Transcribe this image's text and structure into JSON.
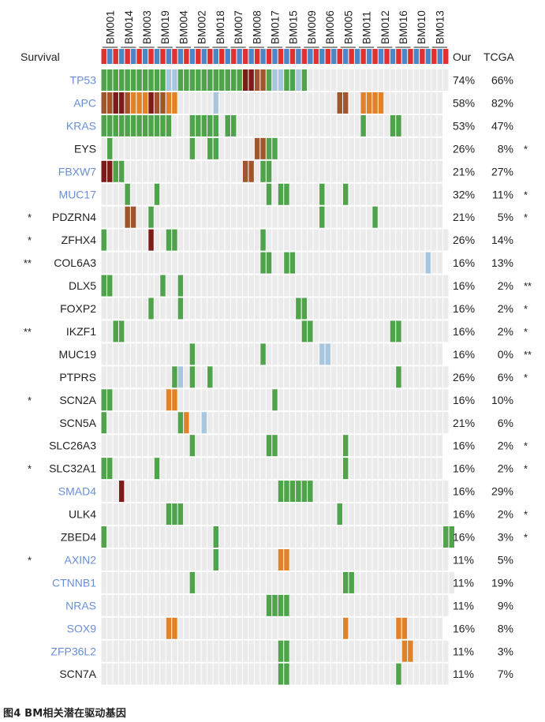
{
  "caption": "图4 BM相关潜在驱动基因",
  "chart_data": {
    "type": "heatmap",
    "title": "",
    "survival_label": "Survival",
    "col_header_our": "Our",
    "col_header_tcga": "TCGA",
    "samples": [
      "BM001",
      "BM014",
      "BM003",
      "BM019",
      "BM004",
      "BM002",
      "BM018",
      "BM007",
      "BM008",
      "BM017",
      "BM015",
      "BM009",
      "BM006",
      "BM005",
      "BM011",
      "BM012",
      "BM016",
      "BM010",
      "BM013"
    ],
    "survival_pattern": [
      "short",
      "long"
    ],
    "colors": {
      "short_survival": "#e03030",
      "long_survival": "#4a86c8",
      "A": "#4fa34a",
      "B": "#a9c6df",
      "C": "#7e1a18",
      "D": "#a0552c",
      "E": "#e0822a",
      "empty": "#ebebeb",
      "gene_blue": "#6a8ed6",
      "gene_black": "#222222"
    },
    "genes": [
      {
        "name": "TP53",
        "color": "blue",
        "left_mark": "",
        "our": "74%",
        "tcga": "66%",
        "right_mark": "",
        "cells": "AAAAAAAAAAABBAAAAAAAAAAACCDDABBAABA........................"
      },
      {
        "name": "APC",
        "color": "blue",
        "left_mark": "",
        "our": "58%",
        "tcga": "82%",
        "right_mark": "",
        "cells": "DDCCDEEECDDEE......B....................DD..EEEE.........."
      },
      {
        "name": "KRAS",
        "color": "blue",
        "left_mark": "",
        "our": "53%",
        "tcga": "47%",
        "right_mark": "",
        "cells": "AAAAAAAAAAAA...AAAAA.AA.....................A....AA......."
      },
      {
        "name": "EYS",
        "color": "black",
        "left_mark": "",
        "our": "26%",
        "tcga": "8%",
        "right_mark": "*",
        "cells": ".A.............A..AA......DDAA............................"
      },
      {
        "name": "FBXW7",
        "color": "blue",
        "left_mark": "",
        "our": "21%",
        "tcga": "27%",
        "right_mark": "",
        "cells": "CCAA....................DD.AA............................."
      },
      {
        "name": "MUC17",
        "color": "blue",
        "left_mark": "",
        "our": "32%",
        "tcga": "11%",
        "right_mark": "*",
        "cells": "....A....A..................A.AA.....A...A................"
      },
      {
        "name": "PDZRN4",
        "color": "black",
        "left_mark": "*",
        "our": "21%",
        "tcga": "5%",
        "right_mark": "*",
        "cells": "....DD..A............................A........A..........."
      },
      {
        "name": "ZFHX4",
        "color": "black",
        "left_mark": "*",
        "our": "26%",
        "tcga": "14%",
        "right_mark": "",
        "cells": "A.......C..AA..............A..............................."
      },
      {
        "name": "COL6A3",
        "color": "black",
        "left_mark": "**",
        "our": "16%",
        "tcga": "13%",
        "right_mark": "",
        "cells": "...........................AA..AA......................B.."
      },
      {
        "name": "DLX5",
        "color": "black",
        "left_mark": "",
        "our": "16%",
        "tcga": "2%",
        "right_mark": "**",
        "cells": "AA........A..A............................................."
      },
      {
        "name": "FOXP2",
        "color": "black",
        "left_mark": "",
        "our": "16%",
        "tcga": "2%",
        "right_mark": "*",
        "cells": "........A....A...................AA........................"
      },
      {
        "name": "IKZF1",
        "color": "black",
        "left_mark": "**",
        "our": "16%",
        "tcga": "2%",
        "right_mark": "*",
        "cells": "..AA..............................AA.............AA........"
      },
      {
        "name": "MUC19",
        "color": "black",
        "left_mark": "",
        "our": "16%",
        "tcga": "0%",
        "right_mark": "**",
        "cells": "...............A...........A.........BB..................."
      },
      {
        "name": "PTPRS",
        "color": "black",
        "left_mark": "",
        "our": "26%",
        "tcga": "6%",
        "right_mark": "*",
        "cells": "............AB.A..A...............................A........"
      },
      {
        "name": "SCN2A",
        "color": "black",
        "left_mark": "*",
        "our": "16%",
        "tcga": "10%",
        "right_mark": "",
        "cells": "AA.........EE................A............................."
      },
      {
        "name": "SCN5A",
        "color": "black",
        "left_mark": "",
        "our": "21%",
        "tcga": "6%",
        "right_mark": "",
        "cells": "A............AE..B........................................."
      },
      {
        "name": "SLC26A3",
        "color": "black",
        "left_mark": "",
        "our": "16%",
        "tcga": "2%",
        "right_mark": "*",
        "cells": "...............A............AA...........A................"
      },
      {
        "name": "SLC32A1",
        "color": "black",
        "left_mark": "*",
        "our": "16%",
        "tcga": "2%",
        "right_mark": "*",
        "cells": "AA.......A...............................A................"
      },
      {
        "name": "SMAD4",
        "color": "blue",
        "left_mark": "",
        "our": "16%",
        "tcga": "29%",
        "right_mark": "",
        "cells": "...C..........................AAAAAA......................."
      },
      {
        "name": "ULK4",
        "color": "black",
        "left_mark": "",
        "our": "16%",
        "tcga": "2%",
        "right_mark": "*",
        "cells": "...........AAA..........................A.................."
      },
      {
        "name": "ZBED4",
        "color": "black",
        "left_mark": "",
        "our": "16%",
        "tcga": "3%",
        "right_mark": "*",
        "cells": "A..................A......................................AA"
      },
      {
        "name": "AXIN2",
        "color": "blue",
        "left_mark": "*",
        "our": "11%",
        "tcga": "5%",
        "right_mark": "",
        "cells": "...................A..........EE..........................."
      },
      {
        "name": "CTNNB1",
        "color": "blue",
        "left_mark": "",
        "our": "11%",
        "tcga": "19%",
        "right_mark": "",
        "cells": "...............A.........................AA................."
      },
      {
        "name": "NRAS",
        "color": "blue",
        "left_mark": "",
        "our": "11%",
        "tcga": "9%",
        "right_mark": "",
        "cells": "............................AAAA..........................."
      },
      {
        "name": "SOX9",
        "color": "blue",
        "left_mark": "",
        "our": "16%",
        "tcga": "8%",
        "right_mark": "",
        "cells": "...........EE............................E........EE......"
      },
      {
        "name": "ZFP36L2",
        "color": "blue",
        "left_mark": "",
        "our": "11%",
        "tcga": "3%",
        "right_mark": "",
        "cells": "..............................AA...................EE......"
      },
      {
        "name": "SCN7A",
        "color": "black",
        "left_mark": "",
        "our": "11%",
        "tcga": "7%",
        "right_mark": "",
        "cells": "..............................AA..................A........"
      }
    ]
  }
}
